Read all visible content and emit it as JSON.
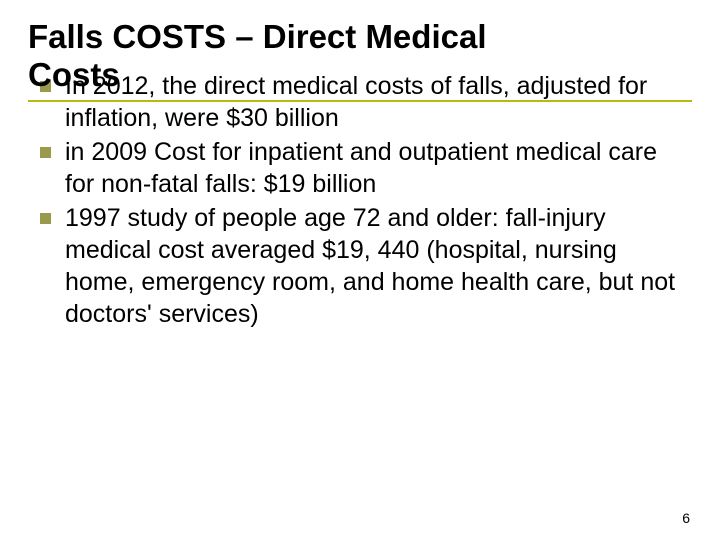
{
  "slide": {
    "title_line1": "Falls COSTS – Direct Medical",
    "title_line2": "Costs",
    "title_underline_color": "#b9b912",
    "bullets": [
      {
        "text": "In 2012, the direct medical costs of falls, adjusted for inflation, were $30 billion"
      },
      {
        "text": " in 2009 Cost for inpatient and outpatient medical care for non-fatal falls: $19 billion"
      },
      {
        "text": "1997 study of people age 72 and older: fall-injury medical cost averaged $19, 440 (hospital, nursing home, emergency room, and home health care, but not doctors' services)"
      }
    ],
    "bullet_marker_color": "#9a9a4d",
    "page_number": "6",
    "text_color": "#000000",
    "background_color": "#ffffff",
    "title_fontsize": 33,
    "body_fontsize": 25,
    "pagenum_fontsize": 14
  }
}
